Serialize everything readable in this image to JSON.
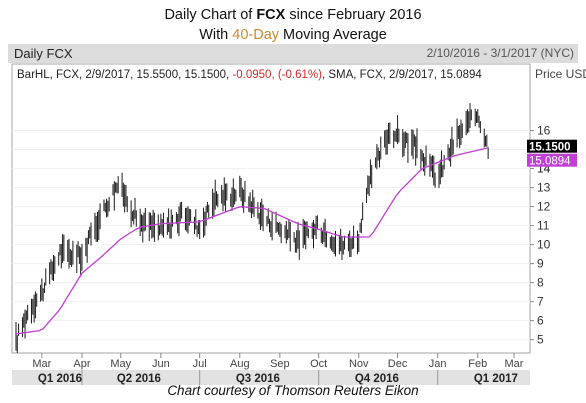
{
  "title": {
    "line1_prefix": "Daily Chart of ",
    "line1_ticker": "FCX",
    "line1_suffix": " since February 2016",
    "line2_prefix": "With ",
    "line2_accent": "40-Day",
    "line2_suffix": " Moving Average"
  },
  "header": {
    "chart_name": "Daily FCX",
    "date_range": "2/10/2016 - 3/1/2017 (NYC)"
  },
  "legend": {
    "bar_text": "BarHL, FCX, 2/9/2017, 15.5500, 15.1500, ",
    "bar_change": "-0.0950, (-0.61%)",
    "sma_text": ", SMA, FCX, 2/9/2017, 15.0894"
  },
  "credit": "Chart courtesy of Thomson Reuters Eikon",
  "colors": {
    "bars": "#1a1a1a",
    "sma": "#c23fd6",
    "change_negative": "#d62828",
    "last_price_tag": "#000000",
    "sma_tag": "#c23fd6",
    "header_bg": "#dcdcdc",
    "quarter_band": "#e2e2e2"
  },
  "chart_data": {
    "type": "bar",
    "subtype": "ohlc-high-low",
    "title": "Daily Chart of FCX since February 2016 With 40-Day Moving Average",
    "ylabel": "Price USD",
    "ylim": [
      4.3,
      19.5
    ],
    "yticks": [
      5,
      6,
      7,
      8,
      9,
      10,
      11,
      12,
      13,
      14,
      15,
      16
    ],
    "x_range": [
      "2016-02-10",
      "2017-03-01"
    ],
    "months": [
      {
        "label": "Mar",
        "date": "2016-03-01"
      },
      {
        "label": "Apr",
        "date": "2016-04-01"
      },
      {
        "label": "May",
        "date": "2016-05-01"
      },
      {
        "label": "Jun",
        "date": "2016-06-01"
      },
      {
        "label": "Jul",
        "date": "2016-07-01"
      },
      {
        "label": "Aug",
        "date": "2016-08-01"
      },
      {
        "label": "Sep",
        "date": "2016-09-01"
      },
      {
        "label": "Oct",
        "date": "2016-10-01"
      },
      {
        "label": "Nov",
        "date": "2016-11-01"
      },
      {
        "label": "Dec",
        "date": "2016-12-01"
      },
      {
        "label": "Jan",
        "date": "2017-01-01"
      },
      {
        "label": "Feb",
        "date": "2017-02-01"
      },
      {
        "label": "Mar",
        "date": "2017-03-01"
      }
    ],
    "quarters": [
      {
        "label": "Q1 2016",
        "date": "2016-03-15"
      },
      {
        "label": "Q2 2016",
        "date": "2016-05-15"
      },
      {
        "label": "Q3 2016",
        "date": "2016-08-15"
      },
      {
        "label": "Q4 2016",
        "date": "2016-11-15"
      },
      {
        "label": "Q1 2017",
        "date": "2017-02-15"
      }
    ],
    "price_anchors": [
      {
        "date": "2016-02-10",
        "close": 4.9
      },
      {
        "date": "2016-02-20",
        "close": 6.6
      },
      {
        "date": "2016-03-01",
        "close": 7.5
      },
      {
        "date": "2016-03-15",
        "close": 9.6
      },
      {
        "date": "2016-04-01",
        "close": 9.4
      },
      {
        "date": "2016-04-15",
        "close": 11.5
      },
      {
        "date": "2016-04-29",
        "close": 13.2
      },
      {
        "date": "2016-05-15",
        "close": 11.2
      },
      {
        "date": "2016-06-01",
        "close": 10.8
      },
      {
        "date": "2016-06-20",
        "close": 11.6
      },
      {
        "date": "2016-07-01",
        "close": 10.9
      },
      {
        "date": "2016-07-12",
        "close": 12.4
      },
      {
        "date": "2016-08-01",
        "close": 12.8
      },
      {
        "date": "2016-08-20",
        "close": 11.4
      },
      {
        "date": "2016-09-15",
        "close": 10.2
      },
      {
        "date": "2016-10-01",
        "close": 10.9
      },
      {
        "date": "2016-10-20",
        "close": 9.9
      },
      {
        "date": "2016-11-01",
        "close": 10.4
      },
      {
        "date": "2016-11-10",
        "close": 13.5
      },
      {
        "date": "2016-11-25",
        "close": 16.0
      },
      {
        "date": "2016-12-15",
        "close": 15.1
      },
      {
        "date": "2017-01-01",
        "close": 13.5
      },
      {
        "date": "2017-01-15",
        "close": 15.6
      },
      {
        "date": "2017-02-01",
        "close": 16.9
      },
      {
        "date": "2017-02-09",
        "close": 15.15
      }
    ],
    "sma_anchors": [
      {
        "date": "2016-02-10",
        "value": 5.3
      },
      {
        "date": "2016-03-01",
        "value": 5.5
      },
      {
        "date": "2016-03-15",
        "value": 6.6
      },
      {
        "date": "2016-04-01",
        "value": 8.5
      },
      {
        "date": "2016-04-15",
        "value": 9.3
      },
      {
        "date": "2016-05-01",
        "value": 10.3
      },
      {
        "date": "2016-05-15",
        "value": 10.9
      },
      {
        "date": "2016-06-01",
        "value": 11.1
      },
      {
        "date": "2016-07-01",
        "value": 11.2
      },
      {
        "date": "2016-08-01",
        "value": 12.0
      },
      {
        "date": "2016-08-20",
        "value": 11.9
      },
      {
        "date": "2016-09-15",
        "value": 11.1
      },
      {
        "date": "2016-10-01",
        "value": 10.8
      },
      {
        "date": "2016-10-20",
        "value": 10.4
      },
      {
        "date": "2016-11-10",
        "value": 10.4
      },
      {
        "date": "2016-12-01",
        "value": 12.7
      },
      {
        "date": "2016-12-20",
        "value": 14.0
      },
      {
        "date": "2017-01-15",
        "value": 14.7
      },
      {
        "date": "2017-02-09",
        "value": 15.09
      }
    ],
    "last_price": {
      "label": "15.1500",
      "value": 15.15
    },
    "sma_last": {
      "label": "15.0894",
      "value": 15.0894
    }
  }
}
